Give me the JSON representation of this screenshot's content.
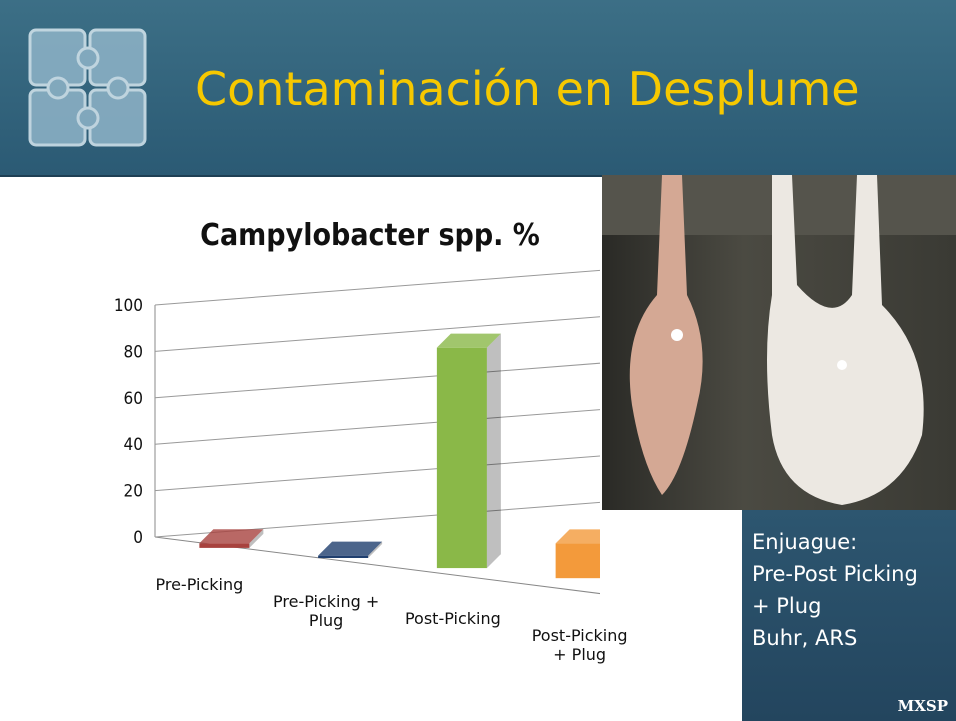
{
  "header": {
    "title": "Contaminación en Desplume"
  },
  "chart_data": {
    "type": "bar3d",
    "title": "Campylobacter spp. %",
    "categories": [
      "Pre-Picking",
      "Pre-Picking +\nPlug",
      "Post-Picking",
      "Post-Picking\n+ Plug"
    ],
    "values": [
      2,
      1,
      95,
      15
    ],
    "colors": [
      "#a8423e",
      "#1f3e6e",
      "#8ab848",
      "#f39a3b"
    ],
    "ylim": [
      0,
      100
    ],
    "yticks": [
      0,
      20,
      40,
      60,
      80,
      100
    ],
    "grid": true
  },
  "panel": {
    "lines": [
      "Enjuague:",
      "Pre-Post Picking",
      "+ Plug",
      "Buhr, ARS"
    ],
    "logo": "MXSP"
  }
}
